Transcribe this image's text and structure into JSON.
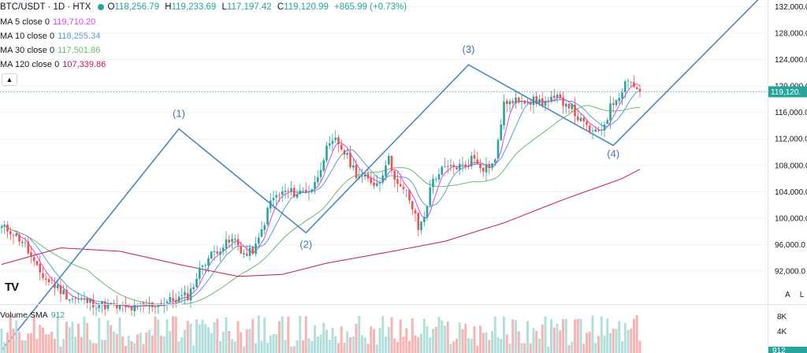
{
  "legend": {
    "symbol": "BTC/USDT · 1D · HTX",
    "open_label": "O",
    "open": "118,256.79",
    "high_label": "H",
    "high": "119,233.69",
    "low_label": "L",
    "low": "117,197.42",
    "close_label": "C",
    "close": "119,120.99",
    "change": "+865.99 (+0.73%)",
    "ma": [
      {
        "label": "MA 5 close 0",
        "value": "119,710.20",
        "color": "#e040fb"
      },
      {
        "label": "MA 10 close 0",
        "value": "118,255.34",
        "color": "#5b9bd5"
      },
      {
        "label": "MA 30 close 0",
        "value": "117,501.86",
        "color": "#66bb6a"
      },
      {
        "label": "MA 120 close 0",
        "value": "107,339.86",
        "color": "#c2185b"
      }
    ],
    "collapse_icon": "chevron-up-icon"
  },
  "logo_text": "TV",
  "scale_buttons": {
    "auto": "A",
    "log": "L"
  },
  "volume": {
    "label": "Volume SMA",
    "value": "912",
    "ticks": [
      "8K",
      "4K"
    ],
    "last_label": "912"
  },
  "colors": {
    "up": "#26a69a",
    "down": "#ef5350",
    "wave": "#4a87c5",
    "price_line": "#26a69a"
  },
  "chart_data": {
    "type": "candlestick",
    "y_ticks": [
      "132,000.0",
      "128,000.0",
      "124,000.0",
      "120,000.0",
      "116,000.0",
      "112,000.0",
      "108,000.0",
      "104,000.0",
      "100,000.0",
      "96,000.0",
      "92,000.0"
    ],
    "ylim": [
      87000,
      133000
    ],
    "last_price": 119120.99,
    "last_price_label": "119,120.",
    "wave_points": [
      [
        0,
        80000
      ],
      [
        60,
        113500
      ],
      [
        103,
        97800
      ],
      [
        158,
        123200
      ],
      [
        207,
        111000
      ],
      [
        257,
        133500
      ]
    ],
    "wave_labels": [
      {
        "text": "(1)",
        "index": 60,
        "price": 115300
      },
      {
        "text": "(2)",
        "index": 103,
        "price": 95500
      },
      {
        "text": "(3)",
        "index": 158,
        "price": 125000
      },
      {
        "text": "(4)",
        "index": 207,
        "price": 109200
      }
    ],
    "ma120": [
      [
        0,
        93000
      ],
      [
        20,
        95500
      ],
      [
        40,
        95000
      ],
      [
        60,
        93000
      ],
      [
        80,
        91200
      ],
      [
        95,
        91500
      ],
      [
        110,
        93200
      ],
      [
        130,
        94800
      ],
      [
        150,
        96500
      ],
      [
        170,
        99300
      ],
      [
        190,
        102800
      ],
      [
        210,
        106000
      ],
      [
        216,
        107400
      ]
    ]
  }
}
